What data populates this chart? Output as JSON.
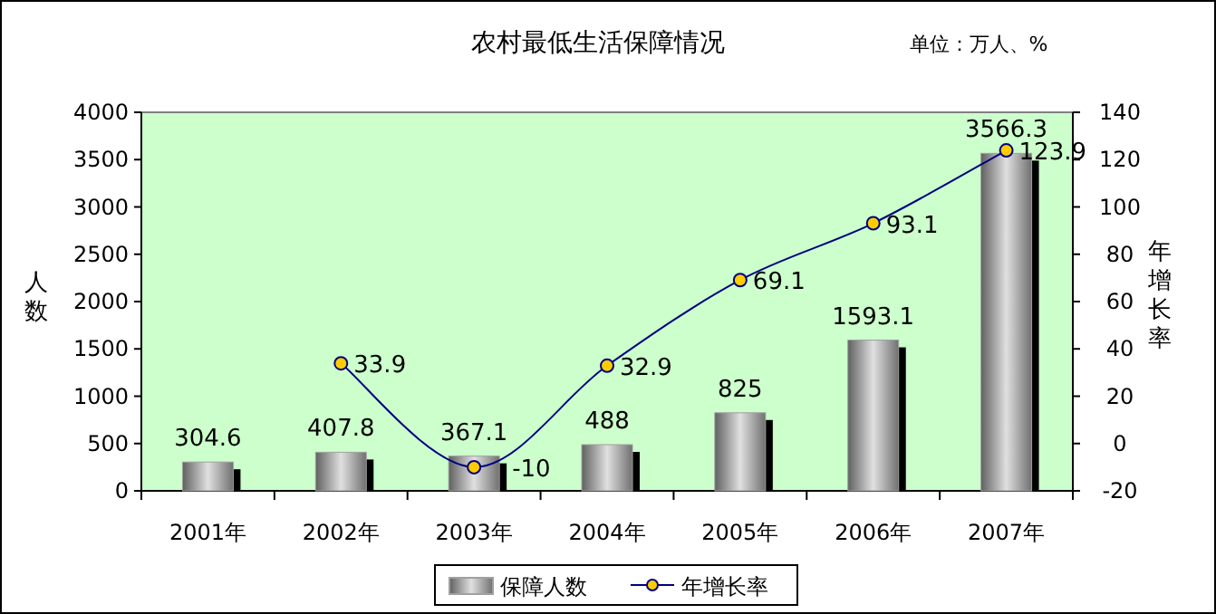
{
  "chart_data": {
    "type": "bar",
    "title": "农村最低生活保障情况",
    "annotations": [
      "单位：万人、%"
    ],
    "ylabel": "人数",
    "y2label": "年增长率",
    "categories": [
      "2001年",
      "2002年",
      "2003年",
      "2004年",
      "2005年",
      "2006年",
      "2007年"
    ],
    "series": [
      {
        "name": "保障人数",
        "color": "#a0a0a0",
        "values": [
          304.6,
          407.8,
          367.1,
          488,
          825,
          1593.1,
          3566.3
        ]
      },
      {
        "name": "年增长率",
        "type": "line",
        "axis": "y2",
        "color": "#000080",
        "marker": "circle",
        "values": [
          null,
          33.9,
          -10,
          32.9,
          69.1,
          93.1,
          123.9
        ]
      }
    ],
    "ylim": [
      0,
      4000
    ],
    "yticks": [
      0,
      500,
      1000,
      1500,
      2000,
      2500,
      3000,
      3500,
      4000
    ],
    "y2lim": [
      -20,
      140
    ],
    "y2ticks": [
      -20,
      0,
      20,
      40,
      60,
      80,
      100,
      120,
      140
    ],
    "data_labels": true,
    "legend": "bottom",
    "grid": false
  }
}
